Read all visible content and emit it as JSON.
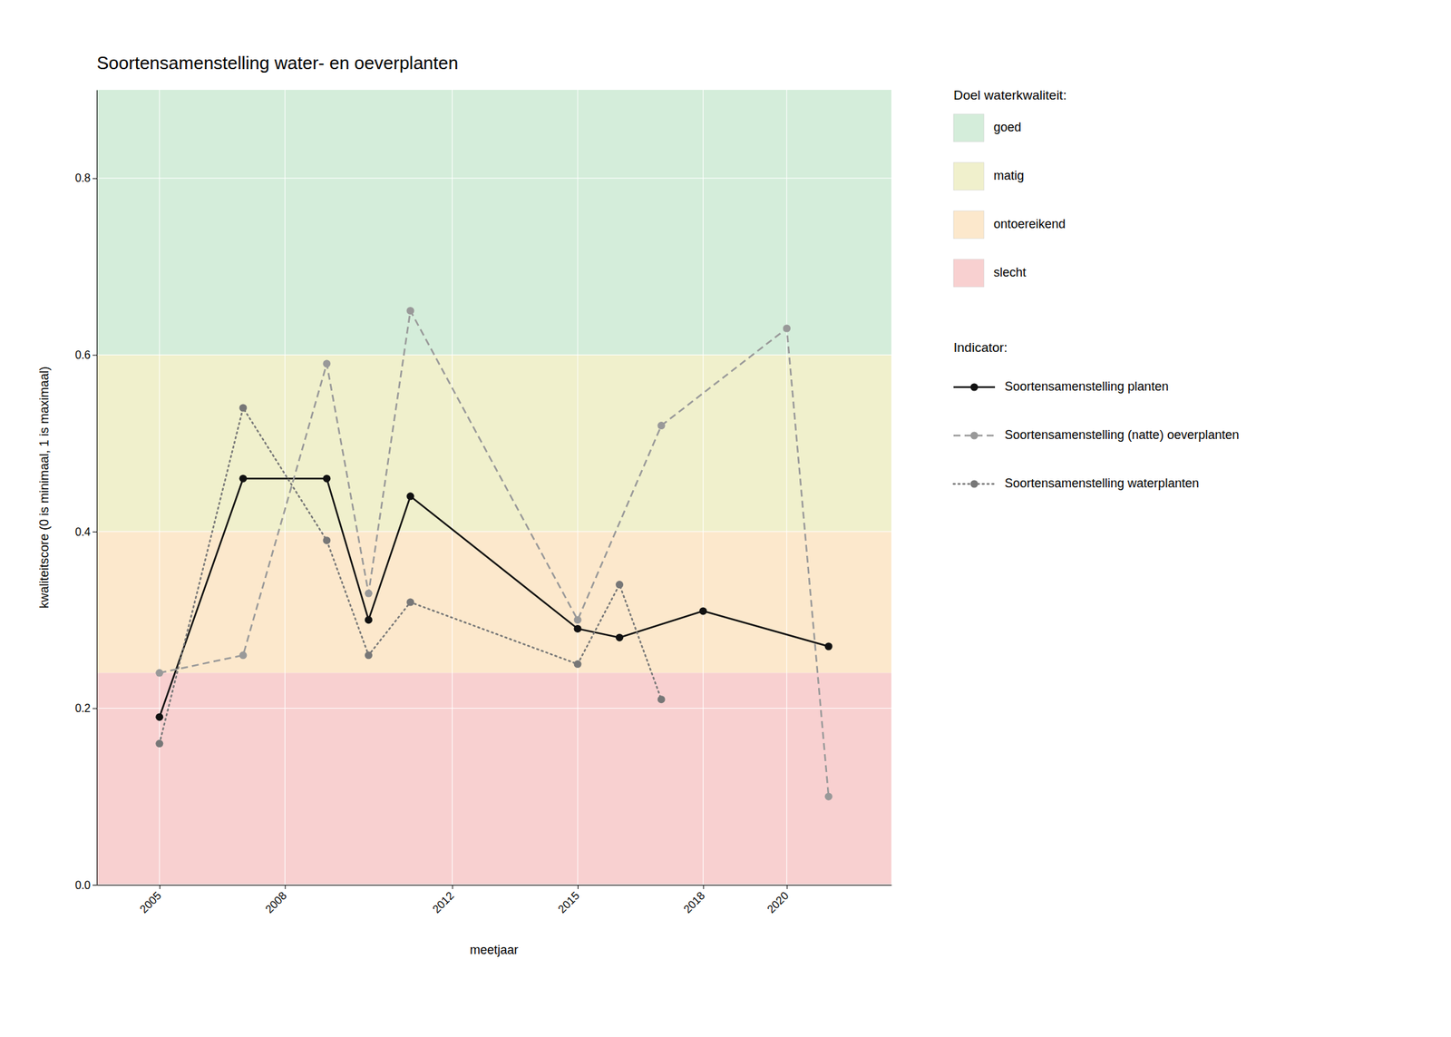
{
  "chart_data": {
    "type": "line",
    "title": "Soortensamenstelling water- en oeverplanten",
    "x_label": "meetjaar",
    "y_label": "kwaliteitscore (0 is minimaal, 1 is maximaal)",
    "xlim": [
      2003.5,
      2022.5
    ],
    "ylim": [
      0.0,
      0.9
    ],
    "xticks": [
      2005,
      2008,
      2012,
      2015,
      2018,
      2020
    ],
    "yticks": [
      {
        "value": 0.0,
        "label": "0.0"
      },
      0.2,
      0.4,
      0.6,
      0.8
    ],
    "grid": true,
    "bands": [
      {
        "name": "goed",
        "color": "#d4edda",
        "range": [
          0.6,
          0.9
        ]
      },
      {
        "name": "matig",
        "color": "#f0f0cc",
        "range": [
          0.4,
          0.6
        ]
      },
      {
        "name": "ontoereikend",
        "color": "#fce8cc",
        "range": [
          0.24,
          0.4
        ]
      },
      {
        "name": "slecht",
        "color": "#f8d0d0",
        "range": [
          0.0,
          0.24
        ]
      }
    ],
    "band_legend_title": "Doel waterkwaliteit:",
    "series_legend_title": "Indicator:",
    "series": [
      {
        "name": "Soortensamenstelling planten",
        "color": "#111111",
        "line_style": "solid",
        "marker": "circle",
        "x": [
          2005,
          2007,
          2009,
          2010,
          2011,
          2015,
          2016,
          2018,
          2021
        ],
        "values": [
          0.19,
          0.46,
          0.46,
          0.3,
          0.44,
          0.29,
          0.28,
          0.31,
          0.27
        ]
      },
      {
        "name": "Soortensamenstelling (natte) oeverplanten",
        "color": "#999999",
        "line_style": "dashed",
        "marker": "circle",
        "x": [
          2005,
          2007,
          2009,
          2010,
          2011,
          2015,
          2017,
          2020,
          2021
        ],
        "values": [
          0.24,
          0.26,
          0.59,
          0.33,
          0.65,
          0.3,
          0.52,
          0.63,
          0.1
        ]
      },
      {
        "name": "Soortensamenstelling waterplanten",
        "color": "#777777",
        "line_style": "dotted",
        "marker": "circle",
        "x": [
          2005,
          2007,
          2009,
          2010,
          2011,
          2015,
          2016,
          2017
        ],
        "values": [
          0.16,
          0.54,
          0.39,
          0.26,
          0.32,
          0.25,
          0.34,
          0.21
        ]
      }
    ]
  }
}
